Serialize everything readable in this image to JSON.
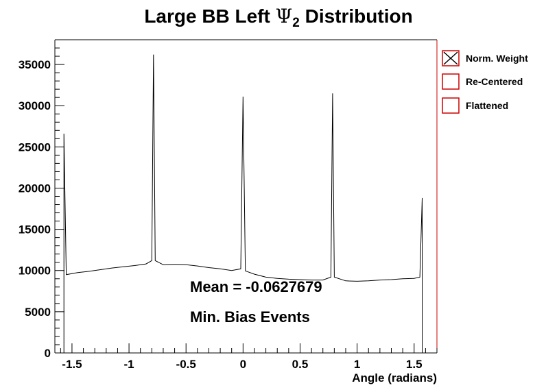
{
  "chart_data": {
    "type": "line",
    "title": "Large BB Left  Ψ2 Distribution",
    "title_parts": {
      "before": "Large BB Left  ",
      "symbol": "Ψ",
      "subscript": "2",
      "after": " Distribution"
    },
    "xlabel": "Angle (radians)",
    "ylabel": "",
    "xlim": [
      -1.65,
      1.7
    ],
    "ylim": [
      0,
      38000
    ],
    "x_ticks": [
      -1.5,
      -1,
      -0.5,
      0,
      0.5,
      1,
      1.5
    ],
    "x_tick_labels": [
      "-1.5",
      "-1",
      "-0.5",
      "0",
      "0.5",
      "1",
      "1.5"
    ],
    "y_ticks": [
      0,
      5000,
      10000,
      15000,
      20000,
      25000,
      30000,
      35000
    ],
    "y_tick_labels": [
      "0",
      "5000",
      "10000",
      "15000",
      "20000",
      "25000",
      "30000",
      "35000"
    ],
    "grid": false,
    "legend_position": "outside-right-top",
    "legend": [
      {
        "label": "Norm. Weight",
        "style": "crossed-box"
      },
      {
        "label": "Re-Centered",
        "style": "open-box"
      },
      {
        "label": "Flattened",
        "style": "open-box"
      }
    ],
    "annotations": [
      "Mean = -0.0627679",
      "Min. Bias Events"
    ],
    "series": [
      {
        "name": "Norm. Weight",
        "x": [
          -1.5708,
          -1.55,
          -1.45,
          -1.35,
          -1.25,
          -1.15,
          -1.05,
          -0.95,
          -0.85,
          -0.8,
          -0.7854,
          -0.77,
          -0.7,
          -0.6,
          -0.5,
          -0.4,
          -0.3,
          -0.2,
          -0.1,
          -0.02,
          0.0,
          0.02,
          0.1,
          0.2,
          0.3,
          0.4,
          0.5,
          0.6,
          0.7,
          0.77,
          0.7854,
          0.8,
          0.9,
          1.0,
          1.1,
          1.2,
          1.3,
          1.4,
          1.5,
          1.55,
          1.5708
        ],
        "y": [
          26600,
          9500,
          9750,
          9900,
          10100,
          10300,
          10450,
          10600,
          10800,
          11200,
          36200,
          11200,
          10700,
          10750,
          10700,
          10550,
          10350,
          10200,
          10000,
          10200,
          31100,
          9950,
          9550,
          9200,
          9050,
          8950,
          8900,
          8850,
          8850,
          9200,
          31500,
          9200,
          8750,
          8700,
          8750,
          8850,
          8900,
          9000,
          9050,
          9200,
          18800
        ],
        "color": "#000000"
      }
    ],
    "colors": {
      "frame": "#000000",
      "legend_box": "#cc0000",
      "axis_right_bottom": "#cc0000"
    }
  }
}
